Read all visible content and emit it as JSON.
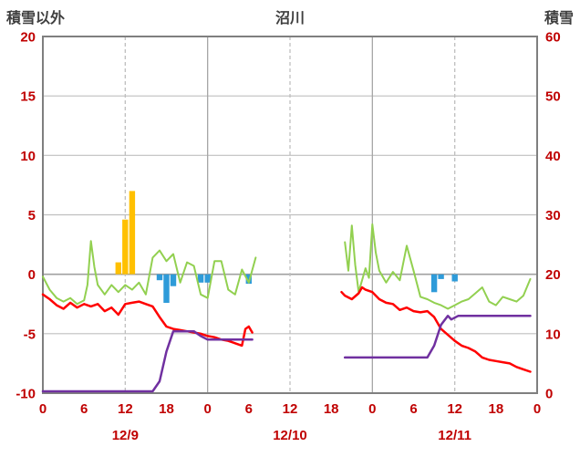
{
  "header": {
    "left_label": "積雪以外",
    "title": "沼川",
    "right_label": "積雪"
  },
  "chart_data": {
    "type": "combo",
    "title": "沼川",
    "left_axis": {
      "label": "積雪以外",
      "min": -10,
      "max": 20,
      "ticks": [
        20,
        15,
        10,
        5,
        0,
        -5,
        -10
      ],
      "color": "#C00000"
    },
    "right_axis": {
      "label": "積雪",
      "min": 0,
      "max": 60,
      "ticks": [
        60,
        50,
        40,
        30,
        20,
        10,
        0
      ],
      "color": "#C00000"
    },
    "x_axis": {
      "min": 0,
      "max": 72,
      "color": "#C00000",
      "tick_labels": [
        "0",
        "6",
        "12",
        "18",
        "0",
        "6",
        "12",
        "18",
        "0",
        "6",
        "12",
        "18",
        "0"
      ],
      "day_labels": [
        {
          "hour": 12,
          "label": "12/9"
        },
        {
          "hour": 36,
          "label": "12/10"
        },
        {
          "hour": 60,
          "label": "12/11"
        }
      ],
      "gridlines": [
        {
          "hour": 12,
          "dashed": true
        },
        {
          "hour": 24,
          "dashed": false
        },
        {
          "hour": 36,
          "dashed": true
        },
        {
          "hour": 48,
          "dashed": false
        },
        {
          "hour": 60,
          "dashed": true
        }
      ]
    },
    "series": [
      {
        "name": "snowfall-bars-orange",
        "type": "bar",
        "axis": "left",
        "color": "#FFC000",
        "points": [
          [
            11,
            1.0
          ],
          [
            12,
            4.6
          ],
          [
            13,
            7.0
          ]
        ]
      },
      {
        "name": "melt-bars-blue",
        "type": "bar",
        "axis": "left",
        "color": "#2E9BD9",
        "points": [
          [
            17,
            -0.5
          ],
          [
            18,
            -2.4
          ],
          [
            19,
            -1.0
          ],
          [
            23,
            -0.7
          ],
          [
            24,
            -0.7
          ],
          [
            30,
            -0.8
          ],
          [
            57,
            -1.5
          ],
          [
            58,
            -0.4
          ],
          [
            60,
            -0.6
          ]
        ]
      },
      {
        "name": "green-line",
        "type": "line",
        "axis": "left",
        "color": "#92D050",
        "width": 2,
        "segments": [
          [
            [
              0,
              -0.2
            ],
            [
              1,
              -1.3
            ],
            [
              2,
              -2.0
            ],
            [
              3,
              -2.3
            ],
            [
              4,
              -2.0
            ],
            [
              5,
              -2.5
            ],
            [
              6,
              -2.2
            ],
            [
              6.5,
              -0.9
            ],
            [
              7,
              2.8
            ],
            [
              7.5,
              0.6
            ],
            [
              8,
              -0.9
            ],
            [
              9,
              -1.7
            ],
            [
              10,
              -0.9
            ],
            [
              11,
              -1.5
            ],
            [
              12,
              -0.9
            ],
            [
              13,
              -1.3
            ],
            [
              14,
              -0.7
            ],
            [
              15,
              -1.7
            ],
            [
              16,
              1.4
            ],
            [
              17,
              2.0
            ],
            [
              18,
              1.1
            ],
            [
              19,
              1.7
            ],
            [
              20,
              -0.7
            ],
            [
              21,
              1.0
            ],
            [
              22,
              0.7
            ],
            [
              23,
              -1.7
            ],
            [
              24,
              -2.0
            ],
            [
              25,
              1.1
            ],
            [
              26,
              1.1
            ],
            [
              27,
              -1.3
            ],
            [
              28,
              -1.7
            ],
            [
              29,
              0.4
            ],
            [
              30,
              -0.7
            ],
            [
              31,
              1.4
            ]
          ],
          [
            [
              44,
              2.7
            ],
            [
              44.5,
              0.3
            ],
            [
              45,
              4.1
            ],
            [
              45.5,
              0.8
            ],
            [
              46,
              -1.5
            ],
            [
              47,
              0.5
            ],
            [
              47.5,
              -0.3
            ],
            [
              48,
              4.2
            ],
            [
              48.5,
              1.8
            ],
            [
              49,
              0.3
            ],
            [
              50,
              -0.7
            ],
            [
              51,
              0.2
            ],
            [
              52,
              -0.5
            ],
            [
              53,
              2.4
            ],
            [
              54,
              0.3
            ],
            [
              55,
              -1.9
            ],
            [
              56,
              -2.1
            ],
            [
              57,
              -2.4
            ],
            [
              58,
              -2.6
            ],
            [
              59,
              -2.9
            ],
            [
              60,
              -2.6
            ],
            [
              61,
              -2.3
            ],
            [
              62,
              -2.1
            ],
            [
              63,
              -1.6
            ],
            [
              64,
              -1.1
            ],
            [
              65,
              -2.3
            ],
            [
              66,
              -2.6
            ],
            [
              67,
              -1.9
            ],
            [
              68,
              -2.1
            ],
            [
              69,
              -2.3
            ],
            [
              70,
              -1.8
            ],
            [
              71,
              -0.4
            ]
          ]
        ]
      },
      {
        "name": "red-line",
        "type": "line",
        "axis": "left",
        "color": "#FF0000",
        "width": 2.5,
        "segments": [
          [
            [
              0,
              -1.7
            ],
            [
              1,
              -2.1
            ],
            [
              2,
              -2.6
            ],
            [
              3,
              -2.9
            ],
            [
              4,
              -2.4
            ],
            [
              5,
              -2.8
            ],
            [
              6,
              -2.5
            ],
            [
              7,
              -2.7
            ],
            [
              8,
              -2.5
            ],
            [
              9,
              -3.1
            ],
            [
              10,
              -2.8
            ],
            [
              11,
              -3.4
            ],
            [
              12,
              -2.5
            ],
            [
              13,
              -2.4
            ],
            [
              14,
              -2.3
            ],
            [
              15,
              -2.5
            ],
            [
              16,
              -2.7
            ],
            [
              17,
              -3.6
            ],
            [
              18,
              -4.4
            ],
            [
              19,
              -4.6
            ],
            [
              20,
              -4.7
            ],
            [
              21,
              -4.8
            ],
            [
              22,
              -4.9
            ],
            [
              23,
              -5.0
            ],
            [
              24,
              -5.2
            ],
            [
              25,
              -5.3
            ],
            [
              26,
              -5.5
            ],
            [
              27,
              -5.6
            ],
            [
              28,
              -5.8
            ],
            [
              29,
              -6.0
            ],
            [
              29.5,
              -4.6
            ],
            [
              30,
              -4.4
            ],
            [
              30.5,
              -4.9
            ]
          ],
          [
            [
              43.5,
              -1.5
            ],
            [
              44,
              -1.8
            ],
            [
              45,
              -2.1
            ],
            [
              46,
              -1.6
            ],
            [
              46.5,
              -1.1
            ],
            [
              47,
              -1.3
            ],
            [
              48,
              -1.5
            ],
            [
              49,
              -2.1
            ],
            [
              50,
              -2.4
            ],
            [
              51,
              -2.5
            ],
            [
              52,
              -3.0
            ],
            [
              53,
              -2.8
            ],
            [
              54,
              -3.1
            ],
            [
              55,
              -3.2
            ],
            [
              56,
              -3.1
            ],
            [
              57,
              -3.6
            ],
            [
              58,
              -4.6
            ],
            [
              59,
              -5.1
            ],
            [
              60,
              -5.6
            ],
            [
              61,
              -6.0
            ],
            [
              62,
              -6.2
            ],
            [
              63,
              -6.5
            ],
            [
              64,
              -7.0
            ],
            [
              65,
              -7.2
            ],
            [
              66,
              -7.3
            ],
            [
              67,
              -7.4
            ],
            [
              68,
              -7.5
            ],
            [
              69,
              -7.8
            ],
            [
              70,
              -8.0
            ],
            [
              71,
              -8.2
            ]
          ]
        ]
      },
      {
        "name": "snow-depth-line-purple",
        "type": "line",
        "axis": "right",
        "color": "#7030A0",
        "width": 2.5,
        "segments": [
          [
            [
              0,
              0.3
            ],
            [
              16,
              0.3
            ],
            [
              17,
              2
            ],
            [
              18,
              7
            ],
            [
              19,
              10.4
            ],
            [
              22,
              10.4
            ],
            [
              23,
              9.6
            ],
            [
              24,
              9
            ],
            [
              30.5,
              9
            ]
          ],
          [
            [
              44,
              6
            ],
            [
              56,
              6
            ],
            [
              57,
              8
            ],
            [
              58,
              11.5
            ],
            [
              59,
              13
            ],
            [
              59.5,
              12.4
            ],
            [
              60.5,
              13
            ],
            [
              71,
              13
            ]
          ]
        ]
      }
    ]
  }
}
